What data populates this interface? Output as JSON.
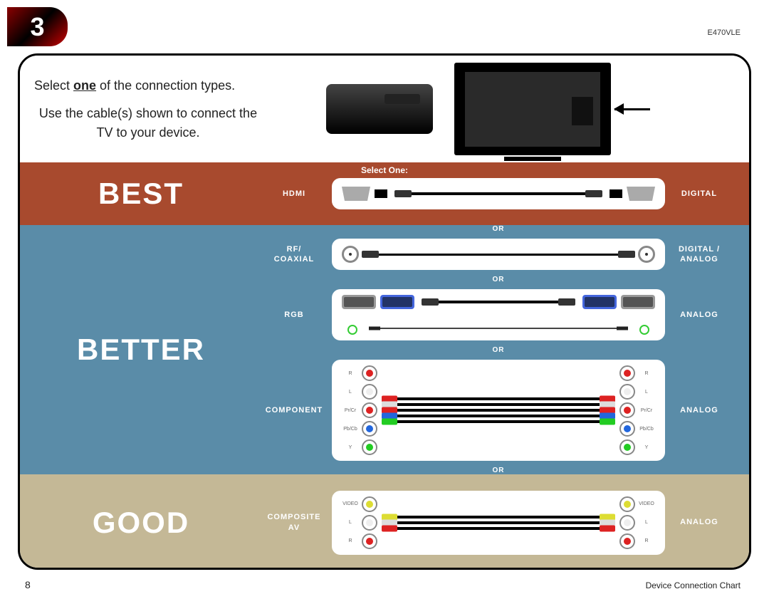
{
  "page": {
    "number": "3",
    "model": "E470VLE",
    "footer_page": "8",
    "caption": "Device Connection Chart"
  },
  "intro": {
    "line1_pre": "Select ",
    "line1_bold": "one",
    "line1_post": " of the connection types.",
    "line2": "Use the cable(s) shown to connect the TV to your device."
  },
  "select_one": "Select One:",
  "or": "OR",
  "tiers": {
    "best": {
      "label": "BEST",
      "bg": "#a84a2e"
    },
    "better": {
      "label": "BETTER",
      "bg": "#5a8ca8"
    },
    "good": {
      "label": "GOOD",
      "bg": "#c4b896"
    }
  },
  "rows": {
    "hdmi": {
      "port": "HDMI",
      "signal": "DIGITAL",
      "colors": {
        "cable": "#000000",
        "port": "#aaaaaa"
      }
    },
    "coax": {
      "port": "RF/\nCOAXIAL",
      "signal": "DIGITAL /\nANALOG",
      "colors": {
        "cable": "#000000",
        "ring": "#888888"
      }
    },
    "rgb": {
      "port": "RGB",
      "signal": "ANALOG",
      "colors": {
        "vga": "#4466dd",
        "audio_jack": "#33cc33",
        "cable": "#000000"
      }
    },
    "component": {
      "port": "COMPONENT",
      "signal": "ANALOG",
      "jacks": [
        {
          "label": "R",
          "color": "#d22"
        },
        {
          "label": "L",
          "color": "#eee",
          "ring": "#888"
        },
        {
          "label": "Pr/Cr",
          "color": "#d22"
        },
        {
          "label": "Pb/Cb",
          "color": "#26d"
        },
        {
          "label": "Y",
          "color": "#2c2"
        }
      ],
      "plug_colors": [
        "#d22",
        "#ddd",
        "#d22",
        "#26d",
        "#2c2"
      ]
    },
    "composite": {
      "port": "COMPOSITE\nAV",
      "signal": "ANALOG",
      "jacks": [
        {
          "label": "VIDEO",
          "color": "#dd3"
        },
        {
          "label": "L",
          "color": "#eee",
          "ring": "#888"
        },
        {
          "label": "R",
          "color": "#d22"
        }
      ],
      "plug_colors": [
        "#dd3",
        "#ddd",
        "#d22"
      ]
    }
  }
}
